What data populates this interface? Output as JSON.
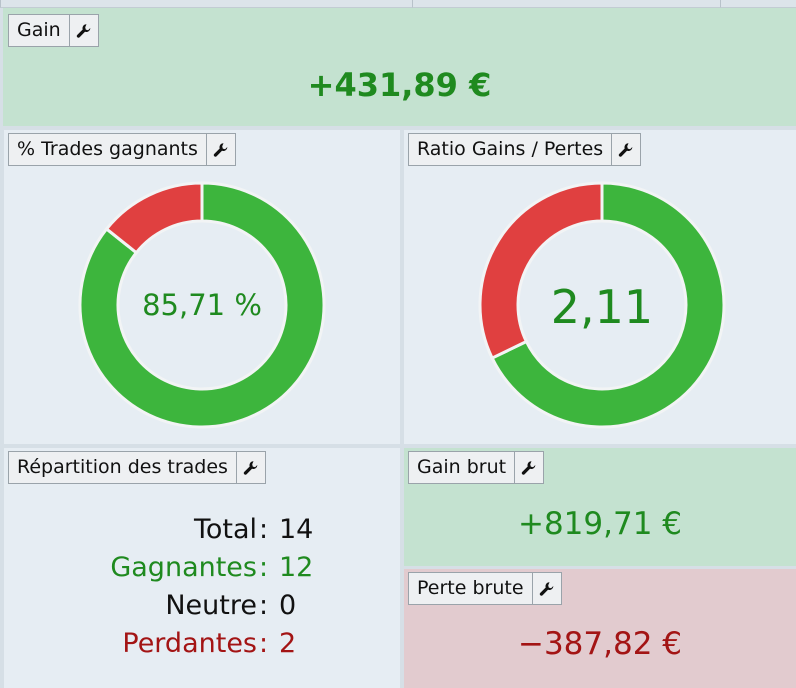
{
  "gain": {
    "label": "Gain",
    "value": "+431,89 €"
  },
  "trades_gagnants": {
    "label": "% Trades gagnants",
    "value_text": "85,71 %",
    "win_fraction": 0.8571,
    "colors": {
      "win": "#3db53d",
      "loss": "#e04040"
    }
  },
  "ratio": {
    "label": "Ratio Gains / Pertes",
    "value_text": "2,11",
    "gain_fraction": 0.6784,
    "colors": {
      "gain": "#3db53d",
      "loss": "#e04040"
    }
  },
  "repartition": {
    "label": "Répartition des trades",
    "rows": [
      {
        "name": "Total",
        "sep": ":",
        "value": "14",
        "color": "#111111"
      },
      {
        "name": "Gagnantes",
        "sep": ":",
        "value": "12",
        "color": "#1f8a1f"
      },
      {
        "name": "Neutre",
        "sep": ":",
        "value": "0",
        "color": "#111111"
      },
      {
        "name": "Perdantes",
        "sep": ":",
        "value": "2",
        "color": "#a31414"
      }
    ]
  },
  "gain_brut": {
    "label": "Gain brut",
    "value": "+819,71 €"
  },
  "perte_brute": {
    "label": "Perte brute",
    "value": "−387,82 €"
  },
  "icons": {
    "settings": "wrench-icon"
  },
  "colors": {
    "positive": "#1f8a1f",
    "negative": "#a31414",
    "panel_green": "#c4e2d0",
    "panel_red": "#e2cbcf",
    "panel_blue": "#e6edf3"
  }
}
